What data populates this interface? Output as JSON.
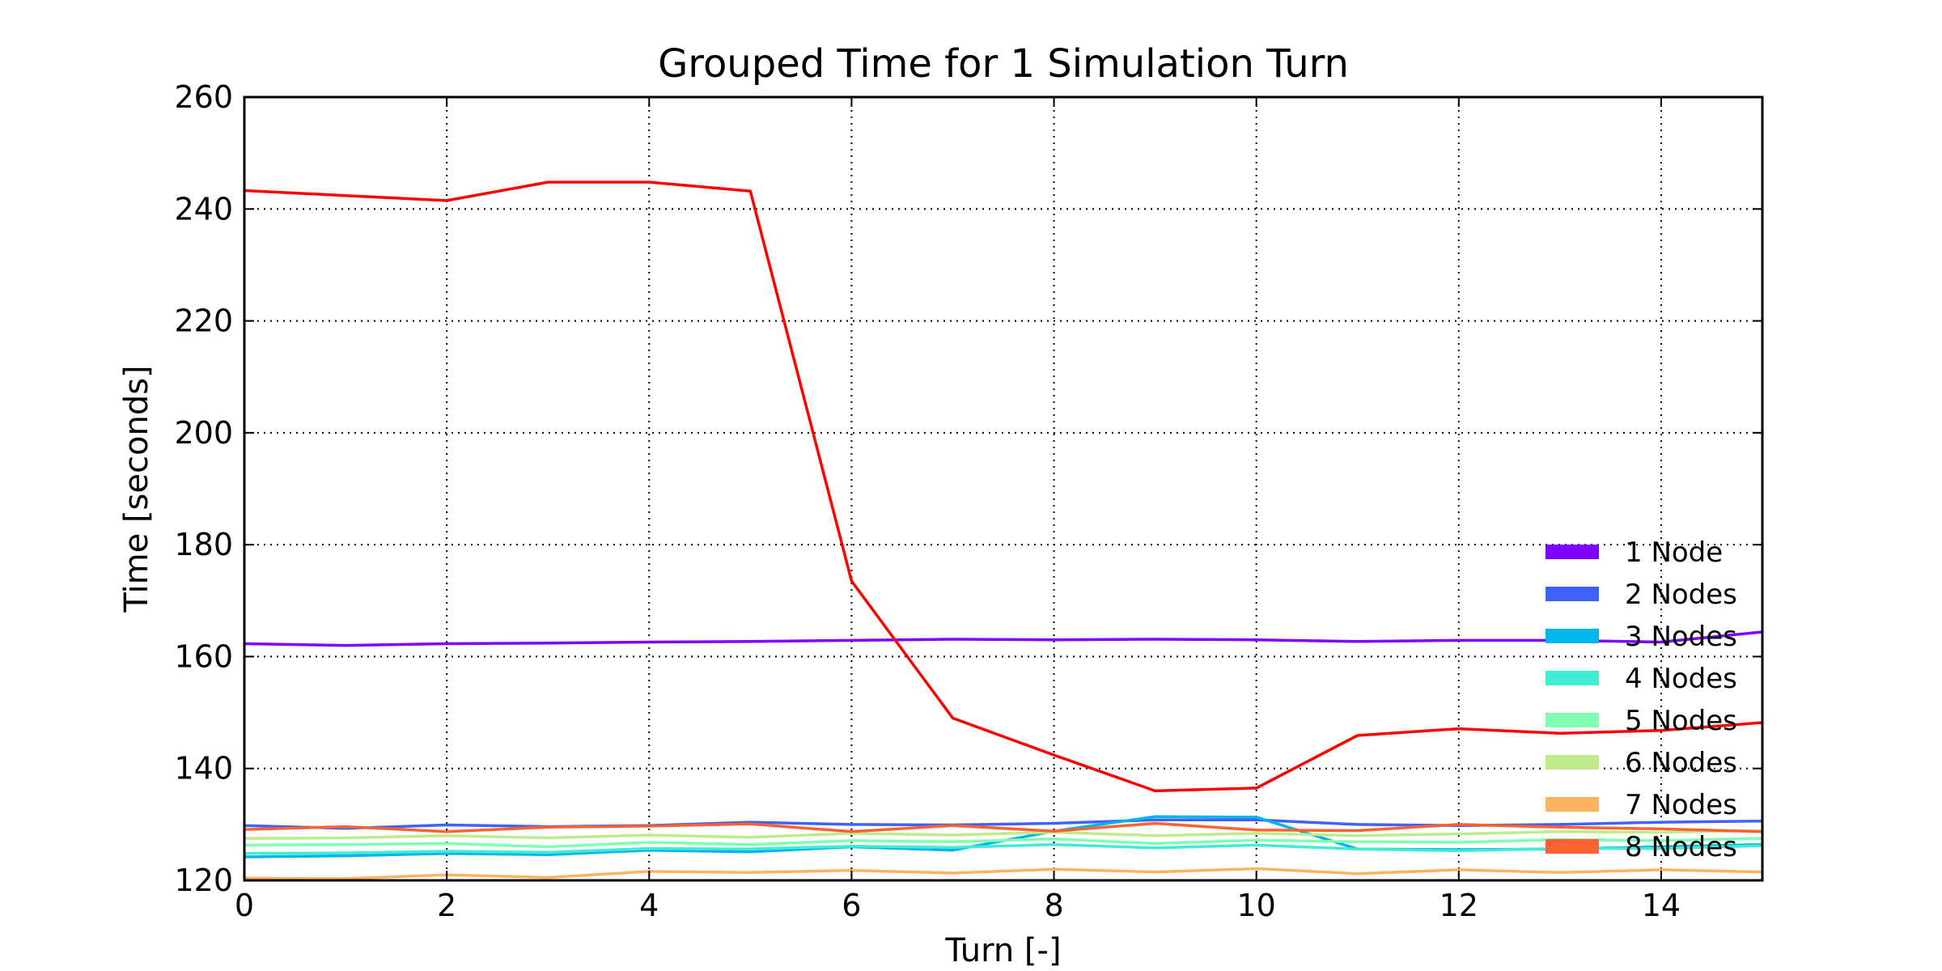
{
  "chart_data": {
    "type": "line",
    "title": "Grouped Time for 1 Simulation Turn",
    "xlabel": "Turn [-]",
    "ylabel": "Time [seconds]",
    "xlim": [
      0,
      15
    ],
    "ylim": [
      120,
      260
    ],
    "xticks": [
      0,
      2,
      4,
      6,
      8,
      10,
      12,
      14
    ],
    "yticks": [
      120,
      140,
      160,
      180,
      200,
      220,
      240,
      260
    ],
    "grid": true,
    "legend_position": "lower-right",
    "x": [
      0,
      1,
      2,
      3,
      4,
      5,
      6,
      7,
      8,
      9,
      10,
      11,
      12,
      13,
      14,
      15
    ],
    "series": [
      {
        "name": "1 Node",
        "color": "#7f00ff",
        "values": [
          162.3,
          162.0,
          162.3,
          162.4,
          162.6,
          162.7,
          162.9,
          163.1,
          163.0,
          163.1,
          163.0,
          162.7,
          162.9,
          162.9,
          162.6,
          164.4
        ]
      },
      {
        "name": "2 Nodes",
        "color": "#4062fa",
        "values": [
          129.8,
          129.3,
          129.9,
          129.6,
          129.8,
          130.4,
          130.0,
          129.9,
          130.2,
          130.8,
          130.8,
          130.0,
          129.8,
          130.0,
          130.4,
          130.6
        ]
      },
      {
        "name": "3 Nodes",
        "color": "#00b5eb",
        "values": [
          124.2,
          124.4,
          124.8,
          124.6,
          125.4,
          125.1,
          126.0,
          125.4,
          128.8,
          131.4,
          131.3,
          125.6,
          125.5,
          125.6,
          126.0,
          126.4
        ]
      },
      {
        "name": "4 Nodes",
        "color": "#40ecd4",
        "values": [
          124.8,
          124.9,
          125.2,
          125.0,
          125.7,
          125.6,
          126.1,
          125.9,
          126.4,
          125.8,
          126.3,
          125.6,
          125.3,
          125.7,
          125.7,
          126.2
        ]
      },
      {
        "name": "5 Nodes",
        "color": "#80ffb4",
        "values": [
          126.3,
          126.4,
          126.6,
          126.0,
          126.8,
          126.4,
          127.1,
          126.9,
          127.4,
          126.6,
          127.2,
          126.9,
          126.8,
          127.3,
          127.1,
          127.5
        ]
      },
      {
        "name": "6 Nodes",
        "color": "#c0eb8d",
        "values": [
          127.5,
          127.6,
          128.0,
          127.6,
          128.1,
          127.7,
          128.4,
          128.1,
          128.6,
          128.0,
          128.4,
          128.0,
          128.3,
          128.7,
          128.6,
          128.9
        ]
      },
      {
        "name": "7 Nodes",
        "color": "#ffb360",
        "values": [
          120.4,
          120.3,
          121.0,
          120.5,
          121.6,
          121.4,
          121.8,
          121.3,
          122.0,
          121.5,
          122.1,
          121.2,
          121.9,
          121.4,
          121.9,
          121.5
        ]
      },
      {
        "name": "8 Nodes",
        "color": "#ff6230",
        "values": [
          129.1,
          129.6,
          128.7,
          129.5,
          129.7,
          130.1,
          128.7,
          129.8,
          128.8,
          130.2,
          129.0,
          128.9,
          130.0,
          129.5,
          129.2,
          128.7
        ]
      },
      {
        "name": "",
        "color": "#ff0000",
        "values": [
          243.3,
          242.4,
          241.5,
          244.8,
          244.8,
          243.2,
          173.5,
          149.0,
          142.4,
          136.0,
          136.5,
          145.9,
          147.1,
          146.3,
          146.8,
          148.2
        ]
      }
    ]
  }
}
